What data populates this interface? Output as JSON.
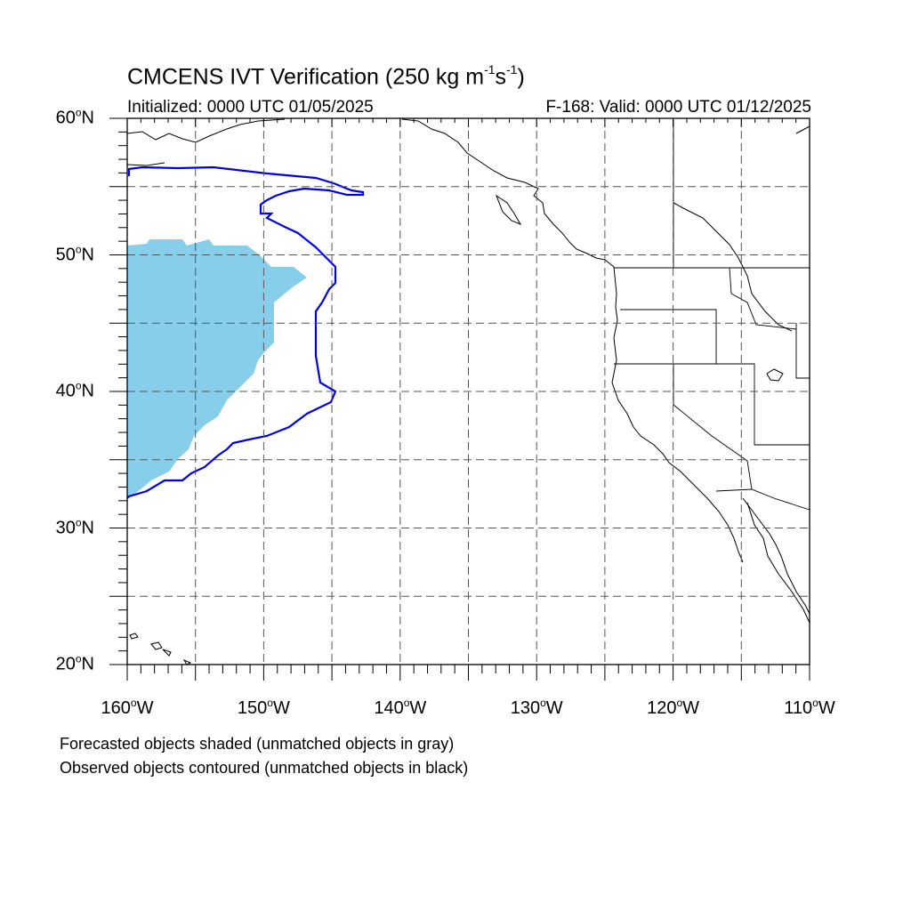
{
  "header": {
    "title_prefix": "CMCENS IVT Verification (250 kg m",
    "title_exp1": "-1",
    "title_mid": "s",
    "title_exp2": "-1",
    "title_suffix": ")",
    "initialized": "Initialized: 0000 UTC 01/05/2025",
    "valid": "F-168: Valid: 0000 UTC 01/12/2025"
  },
  "axes": {
    "lat_labels": [
      {
        "text": "60",
        "hemi": "N"
      },
      {
        "text": "50",
        "hemi": "N"
      },
      {
        "text": "40",
        "hemi": "N"
      },
      {
        "text": "30",
        "hemi": "N"
      },
      {
        "text": "20",
        "hemi": "N"
      }
    ],
    "lon_labels": [
      {
        "text": "160",
        "hemi": "W"
      },
      {
        "text": "150",
        "hemi": "W"
      },
      {
        "text": "140",
        "hemi": "W"
      },
      {
        "text": "130",
        "hemi": "W"
      },
      {
        "text": "120",
        "hemi": "W"
      },
      {
        "text": "110",
        "hemi": "W"
      }
    ],
    "lat_range": [
      20,
      60
    ],
    "lon_range": [
      -160,
      -110
    ],
    "grid": "dashed every 5 degrees"
  },
  "legend": {
    "line1": "Forecasted objects shaded (unmatched objects in gray)",
    "line2": "Observed objects contoured (unmatched objects in black)"
  },
  "colors": {
    "forecast_fill": "#87ceeb",
    "observed_contour": "#0000e0",
    "coastline": "#000000",
    "grid": "#555555"
  }
}
